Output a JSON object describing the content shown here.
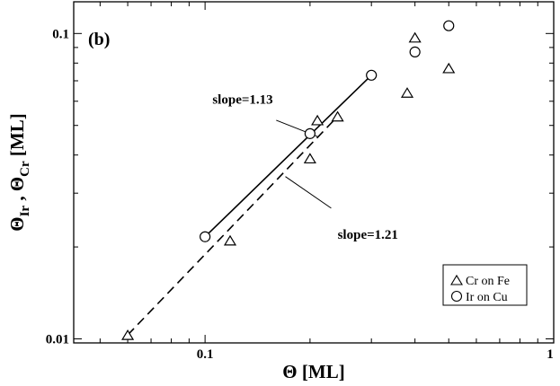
{
  "chart_data": {
    "type": "scatter",
    "panel_label": "(b)",
    "xlabel": "Θ [ML]",
    "ylabel_main": "Θ",
    "ylabel_sub1": "Ir",
    "ylabel_sep": " , ",
    "ylabel_sub2": "Cr",
    "ylabel_unit": " [ML]",
    "x_scale": "log",
    "y_scale": "log",
    "xlim": [
      0.042,
      1.0
    ],
    "ylim": [
      0.0097,
      0.127
    ],
    "x_ticks": [
      {
        "value": 0.1,
        "label": "0.1"
      },
      {
        "value": 1,
        "label": "1"
      }
    ],
    "y_ticks": [
      {
        "value": 0.01,
        "label": "0.01"
      },
      {
        "value": 0.1,
        "label": "0.1"
      }
    ],
    "legend_position": "bottom-right",
    "series": [
      {
        "name": "Cr on Fe",
        "marker": "triangle",
        "points": [
          {
            "x": 0.06,
            "y": 0.0103
          },
          {
            "x": 0.118,
            "y": 0.021
          },
          {
            "x": 0.2,
            "y": 0.039
          },
          {
            "x": 0.21,
            "y": 0.052
          },
          {
            "x": 0.24,
            "y": 0.0535
          },
          {
            "x": 0.38,
            "y": 0.064
          },
          {
            "x": 0.4,
            "y": 0.097
          },
          {
            "x": 0.5,
            "y": 0.077
          }
        ]
      },
      {
        "name": "Ir on Cu",
        "marker": "circle",
        "points": [
          {
            "x": 0.1,
            "y": 0.0216
          },
          {
            "x": 0.2,
            "y": 0.047
          },
          {
            "x": 0.3,
            "y": 0.073
          },
          {
            "x": 0.4,
            "y": 0.087
          },
          {
            "x": 0.5,
            "y": 0.106
          }
        ]
      }
    ],
    "fit_lines": [
      {
        "style": "solid",
        "x": [
          0.1,
          0.3
        ],
        "y": [
          0.0216,
          0.073
        ]
      },
      {
        "style": "dashed",
        "x": [
          0.06,
          0.24
        ],
        "y": [
          0.0103,
          0.0535
        ]
      }
    ],
    "annotations": [
      {
        "text": "slope=1.13",
        "x": 0.105,
        "y": 0.059,
        "pointer_from": [
          0.16,
          0.052
        ],
        "pointer_to": [
          0.21,
          0.046
        ]
      },
      {
        "text": "slope=1.21",
        "x": 0.24,
        "y": 0.0213,
        "pointer_from": [
          0.17,
          0.034
        ],
        "pointer_to": [
          0.23,
          0.0268
        ]
      }
    ]
  }
}
